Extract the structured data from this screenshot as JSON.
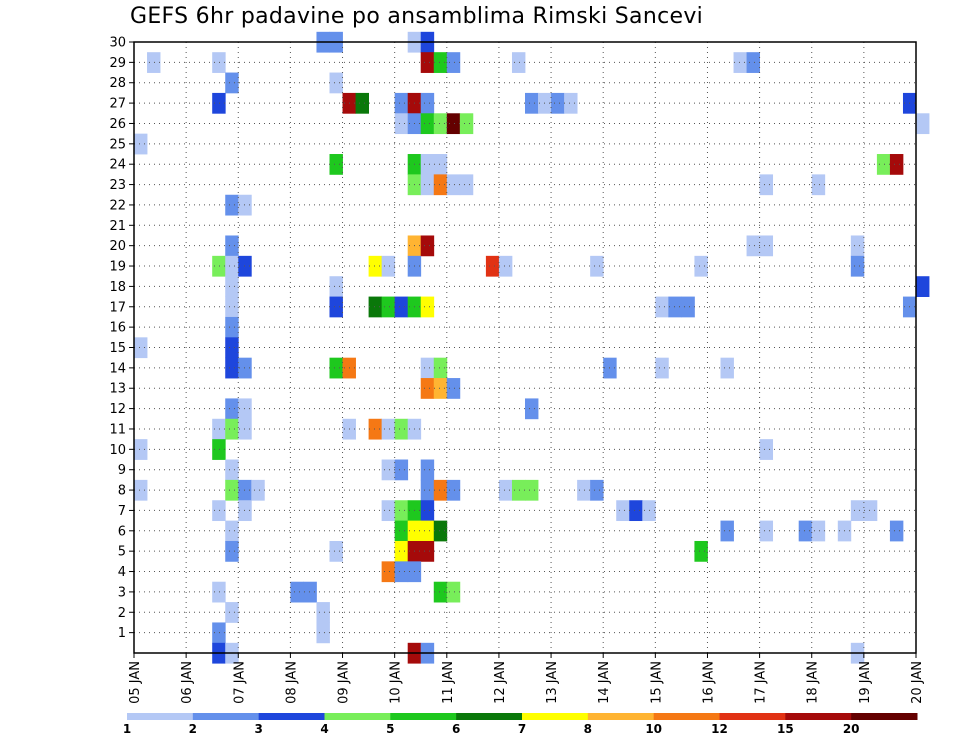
{
  "chart_data": {
    "type": "heatmap",
    "title": "GEFS 6hr padavine po ansamblima Rimski Sancevi",
    "x_ticks": [
      "05 JAN",
      "06 JAN",
      "07 JAN",
      "08 JAN",
      "09 JAN",
      "10 JAN",
      "11 JAN",
      "12 JAN",
      "13 JAN",
      "14 JAN",
      "15 JAN",
      "16 JAN",
      "17 JAN",
      "18 JAN",
      "19 JAN",
      "20 JAN"
    ],
    "y_ticks": [
      1,
      2,
      3,
      4,
      5,
      6,
      7,
      8,
      9,
      10,
      11,
      12,
      13,
      14,
      15,
      16,
      17,
      18,
      19,
      20,
      21,
      22,
      23,
      24,
      25,
      26,
      27,
      28,
      29,
      30
    ],
    "x_range_days": [
      5,
      20
    ],
    "y_range": [
      0,
      30
    ],
    "step_hours": 6,
    "grid": true,
    "colorbar": {
      "labels": [
        "1",
        "2",
        "3",
        "4",
        "5",
        "6",
        "7",
        "8",
        "10",
        "12",
        "15",
        "20"
      ],
      "colors": [
        "#b4c8f5",
        "#6490eb",
        "#1e46dc",
        "#78ee5a",
        "#1ec81e",
        "#0a780a",
        "#ffff00",
        "#ffb432",
        "#f57814",
        "#e13214",
        "#a50a0a",
        "#640000"
      ]
    },
    "cells": [
      {
        "m": 30,
        "t": "08 JAN 12",
        "v": 2
      },
      {
        "m": 30,
        "t": "08 JAN 18",
        "v": 2
      },
      {
        "m": 30,
        "t": "10 JAN 06",
        "v": 1
      },
      {
        "m": 30,
        "t": "10 JAN 12",
        "v": 3
      },
      {
        "m": 29,
        "t": "05 JAN 06",
        "v": 1
      },
      {
        "m": 29,
        "t": "06 JAN 12",
        "v": 1
      },
      {
        "m": 29,
        "t": "10 JAN 12",
        "v": 15
      },
      {
        "m": 29,
        "t": "10 JAN 18",
        "v": 5
      },
      {
        "m": 29,
        "t": "11 JAN 00",
        "v": 2
      },
      {
        "m": 29,
        "t": "12 JAN 06",
        "v": 1
      },
      {
        "m": 29,
        "t": "16 JAN 12",
        "v": 1
      },
      {
        "m": 29,
        "t": "16 JAN 18",
        "v": 2
      },
      {
        "m": 28,
        "t": "06 JAN 18",
        "v": 2
      },
      {
        "m": 28,
        "t": "08 JAN 18",
        "v": 1
      },
      {
        "m": 27,
        "t": "06 JAN 12",
        "v": 3
      },
      {
        "m": 27,
        "t": "09 JAN 00",
        "v": 15
      },
      {
        "m": 27,
        "t": "09 JAN 06",
        "v": 6
      },
      {
        "m": 27,
        "t": "10 JAN 00",
        "v": 2
      },
      {
        "m": 27,
        "t": "10 JAN 06",
        "v": 15
      },
      {
        "m": 27,
        "t": "10 JAN 12",
        "v": 2
      },
      {
        "m": 27,
        "t": "12 JAN 12",
        "v": 2
      },
      {
        "m": 27,
        "t": "12 JAN 18",
        "v": 1
      },
      {
        "m": 27,
        "t": "13 JAN 00",
        "v": 2
      },
      {
        "m": 27,
        "t": "13 JAN 06",
        "v": 1
      },
      {
        "m": 27,
        "t": "19 JAN 18",
        "v": 3
      },
      {
        "m": 26,
        "t": "10 JAN 00",
        "v": 1
      },
      {
        "m": 26,
        "t": "10 JAN 06",
        "v": 2
      },
      {
        "m": 26,
        "t": "10 JAN 12",
        "v": 5
      },
      {
        "m": 26,
        "t": "10 JAN 18",
        "v": 4
      },
      {
        "m": 26,
        "t": "11 JAN 00",
        "v": 20
      },
      {
        "m": 26,
        "t": "11 JAN 06",
        "v": 4
      },
      {
        "m": 26,
        "t": "20 JAN 00",
        "v": 1
      },
      {
        "m": 25,
        "t": "05 JAN 00",
        "v": 1
      },
      {
        "m": 24,
        "t": "08 JAN 18",
        "v": 5
      },
      {
        "m": 24,
        "t": "10 JAN 06",
        "v": 5
      },
      {
        "m": 24,
        "t": "10 JAN 12",
        "v": 1
      },
      {
        "m": 24,
        "t": "10 JAN 18",
        "v": 1
      },
      {
        "m": 24,
        "t": "19 JAN 06",
        "v": 4
      },
      {
        "m": 24,
        "t": "19 JAN 12",
        "v": 15
      },
      {
        "m": 23,
        "t": "10 JAN 06",
        "v": 4
      },
      {
        "m": 23,
        "t": "10 JAN 12",
        "v": 1
      },
      {
        "m": 23,
        "t": "10 JAN 18",
        "v": 10
      },
      {
        "m": 23,
        "t": "11 JAN 00",
        "v": 1
      },
      {
        "m": 23,
        "t": "11 JAN 06",
        "v": 1
      },
      {
        "m": 23,
        "t": "17 JAN 00",
        "v": 1
      },
      {
        "m": 23,
        "t": "18 JAN 00",
        "v": 1
      },
      {
        "m": 22,
        "t": "06 JAN 18",
        "v": 2
      },
      {
        "m": 22,
        "t": "07 JAN 00",
        "v": 1
      },
      {
        "m": 20,
        "t": "06 JAN 18",
        "v": 2
      },
      {
        "m": 20,
        "t": "10 JAN 06",
        "v": 8
      },
      {
        "m": 20,
        "t": "10 JAN 12",
        "v": 15
      },
      {
        "m": 20,
        "t": "16 JAN 18",
        "v": 1
      },
      {
        "m": 20,
        "t": "17 JAN 00",
        "v": 1
      },
      {
        "m": 20,
        "t": "18 JAN 18",
        "v": 1
      },
      {
        "m": 19,
        "t": "06 JAN 12",
        "v": 4
      },
      {
        "m": 19,
        "t": "06 JAN 18",
        "v": 1
      },
      {
        "m": 19,
        "t": "07 JAN 00",
        "v": 3
      },
      {
        "m": 19,
        "t": "09 JAN 12",
        "v": 7
      },
      {
        "m": 19,
        "t": "09 JAN 18",
        "v": 1
      },
      {
        "m": 19,
        "t": "10 JAN 06",
        "v": 2
      },
      {
        "m": 19,
        "t": "11 JAN 18",
        "v": 12
      },
      {
        "m": 19,
        "t": "12 JAN 00",
        "v": 1
      },
      {
        "m": 19,
        "t": "13 JAN 18",
        "v": 1
      },
      {
        "m": 19,
        "t": "15 JAN 18",
        "v": 1
      },
      {
        "m": 19,
        "t": "18 JAN 18",
        "v": 2
      },
      {
        "m": 18,
        "t": "06 JAN 18",
        "v": 1
      },
      {
        "m": 18,
        "t": "08 JAN 18",
        "v": 1
      },
      {
        "m": 18,
        "t": "20 JAN 00",
        "v": 3
      },
      {
        "m": 17,
        "t": "06 JAN 18",
        "v": 1
      },
      {
        "m": 17,
        "t": "08 JAN 18",
        "v": 3
      },
      {
        "m": 17,
        "t": "09 JAN 12",
        "v": 6
      },
      {
        "m": 17,
        "t": "09 JAN 18",
        "v": 5
      },
      {
        "m": 17,
        "t": "10 JAN 00",
        "v": 3
      },
      {
        "m": 17,
        "t": "10 JAN 06",
        "v": 5
      },
      {
        "m": 17,
        "t": "10 JAN 12",
        "v": 7
      },
      {
        "m": 17,
        "t": "15 JAN 00",
        "v": 1
      },
      {
        "m": 17,
        "t": "15 JAN 06",
        "v": 2
      },
      {
        "m": 17,
        "t": "15 JAN 12",
        "v": 2
      },
      {
        "m": 17,
        "t": "19 JAN 18",
        "v": 2
      },
      {
        "m": 16,
        "t": "06 JAN 18",
        "v": 2
      },
      {
        "m": 15,
        "t": "05 JAN 00",
        "v": 1
      },
      {
        "m": 15,
        "t": "06 JAN 18",
        "v": 3
      },
      {
        "m": 14,
        "t": "06 JAN 18",
        "v": 3
      },
      {
        "m": 14,
        "t": "07 JAN 00",
        "v": 2
      },
      {
        "m": 14,
        "t": "08 JAN 18",
        "v": 5
      },
      {
        "m": 14,
        "t": "09 JAN 00",
        "v": 10
      },
      {
        "m": 14,
        "t": "10 JAN 12",
        "v": 1
      },
      {
        "m": 14,
        "t": "10 JAN 18",
        "v": 4
      },
      {
        "m": 14,
        "t": "14 JAN 00",
        "v": 2
      },
      {
        "m": 14,
        "t": "15 JAN 00",
        "v": 1
      },
      {
        "m": 14,
        "t": "16 JAN 06",
        "v": 1
      },
      {
        "m": 13,
        "t": "10 JAN 12",
        "v": 10
      },
      {
        "m": 13,
        "t": "10 JAN 18",
        "v": 8
      },
      {
        "m": 13,
        "t": "11 JAN 00",
        "v": 2
      },
      {
        "m": 12,
        "t": "06 JAN 18",
        "v": 2
      },
      {
        "m": 12,
        "t": "07 JAN 00",
        "v": 1
      },
      {
        "m": 12,
        "t": "12 JAN 12",
        "v": 2
      },
      {
        "m": 11,
        "t": "06 JAN 12",
        "v": 1
      },
      {
        "m": 11,
        "t": "06 JAN 18",
        "v": 4
      },
      {
        "m": 11,
        "t": "07 JAN 00",
        "v": 1
      },
      {
        "m": 11,
        "t": "09 JAN 00",
        "v": 1
      },
      {
        "m": 11,
        "t": "09 JAN 12",
        "v": 10
      },
      {
        "m": 11,
        "t": "09 JAN 18",
        "v": 1
      },
      {
        "m": 11,
        "t": "10 JAN 00",
        "v": 4
      },
      {
        "m": 11,
        "t": "10 JAN 06",
        "v": 1
      },
      {
        "m": 10,
        "t": "05 JAN 00",
        "v": 1
      },
      {
        "m": 10,
        "t": "06 JAN 12",
        "v": 5
      },
      {
        "m": 10,
        "t": "17 JAN 00",
        "v": 1
      },
      {
        "m": 9,
        "t": "06 JAN 18",
        "v": 1
      },
      {
        "m": 9,
        "t": "09 JAN 18",
        "v": 1
      },
      {
        "m": 9,
        "t": "10 JAN 00",
        "v": 2
      },
      {
        "m": 9,
        "t": "10 JAN 12",
        "v": 2
      },
      {
        "m": 8,
        "t": "05 JAN 00",
        "v": 1
      },
      {
        "m": 8,
        "t": "06 JAN 18",
        "v": 4
      },
      {
        "m": 8,
        "t": "07 JAN 00",
        "v": 2
      },
      {
        "m": 8,
        "t": "07 JAN 06",
        "v": 1
      },
      {
        "m": 8,
        "t": "10 JAN 12",
        "v": 2
      },
      {
        "m": 8,
        "t": "10 JAN 18",
        "v": 10
      },
      {
        "m": 8,
        "t": "11 JAN 00",
        "v": 2
      },
      {
        "m": 8,
        "t": "12 JAN 00",
        "v": 1
      },
      {
        "m": 8,
        "t": "12 JAN 06",
        "v": 4
      },
      {
        "m": 8,
        "t": "12 JAN 12",
        "v": 4
      },
      {
        "m": 8,
        "t": "13 JAN 12",
        "v": 1
      },
      {
        "m": 8,
        "t": "13 JAN 18",
        "v": 2
      },
      {
        "m": 7,
        "t": "06 JAN 12",
        "v": 1
      },
      {
        "m": 7,
        "t": "07 JAN 00",
        "v": 1
      },
      {
        "m": 7,
        "t": "09 JAN 18",
        "v": 1
      },
      {
        "m": 7,
        "t": "10 JAN 00",
        "v": 4
      },
      {
        "m": 7,
        "t": "10 JAN 06",
        "v": 5
      },
      {
        "m": 7,
        "t": "10 JAN 12",
        "v": 3
      },
      {
        "m": 7,
        "t": "14 JAN 06",
        "v": 1
      },
      {
        "m": 7,
        "t": "14 JAN 12",
        "v": 3
      },
      {
        "m": 7,
        "t": "14 JAN 18",
        "v": 1
      },
      {
        "m": 7,
        "t": "18 JAN 18",
        "v": 1
      },
      {
        "m": 7,
        "t": "19 JAN 00",
        "v": 1
      },
      {
        "m": 6,
        "t": "06 JAN 18",
        "v": 1
      },
      {
        "m": 6,
        "t": "10 JAN 00",
        "v": 5
      },
      {
        "m": 6,
        "t": "10 JAN 06",
        "v": 7
      },
      {
        "m": 6,
        "t": "10 JAN 12",
        "v": 7
      },
      {
        "m": 6,
        "t": "10 JAN 18",
        "v": 6
      },
      {
        "m": 6,
        "t": "16 JAN 06",
        "v": 2
      },
      {
        "m": 6,
        "t": "17 JAN 00",
        "v": 1
      },
      {
        "m": 6,
        "t": "17 JAN 18",
        "v": 2
      },
      {
        "m": 6,
        "t": "18 JAN 00",
        "v": 1
      },
      {
        "m": 6,
        "t": "18 JAN 12",
        "v": 1
      },
      {
        "m": 6,
        "t": "19 JAN 12",
        "v": 2
      },
      {
        "m": 5,
        "t": "06 JAN 18",
        "v": 2
      },
      {
        "m": 5,
        "t": "08 JAN 18",
        "v": 1
      },
      {
        "m": 5,
        "t": "10 JAN 00",
        "v": 7
      },
      {
        "m": 5,
        "t": "10 JAN 06",
        "v": 15
      },
      {
        "m": 5,
        "t": "10 JAN 12",
        "v": 15
      },
      {
        "m": 5,
        "t": "15 JAN 18",
        "v": 5
      },
      {
        "m": 4,
        "t": "09 JAN 18",
        "v": 10
      },
      {
        "m": 4,
        "t": "10 JAN 00",
        "v": 2
      },
      {
        "m": 4,
        "t": "10 JAN 06",
        "v": 2
      },
      {
        "m": 3,
        "t": "06 JAN 12",
        "v": 1
      },
      {
        "m": 3,
        "t": "08 JAN 00",
        "v": 2
      },
      {
        "m": 3,
        "t": "08 JAN 06",
        "v": 2
      },
      {
        "m": 3,
        "t": "10 JAN 18",
        "v": 5
      },
      {
        "m": 3,
        "t": "11 JAN 00",
        "v": 4
      },
      {
        "m": 2,
        "t": "06 JAN 18",
        "v": 1
      },
      {
        "m": 2,
        "t": "08 JAN 12",
        "v": 1
      },
      {
        "m": 1,
        "t": "06 JAN 12",
        "v": 2
      },
      {
        "m": 1,
        "t": "08 JAN 12",
        "v": 1
      },
      {
        "m": 0,
        "t": "06 JAN 12",
        "v": 3
      },
      {
        "m": 0,
        "t": "06 JAN 18",
        "v": 1
      },
      {
        "m": 0,
        "t": "10 JAN 06",
        "v": 15
      },
      {
        "m": 0,
        "t": "10 JAN 12",
        "v": 2
      },
      {
        "m": 0,
        "t": "18 JAN 18",
        "v": 1
      }
    ]
  }
}
